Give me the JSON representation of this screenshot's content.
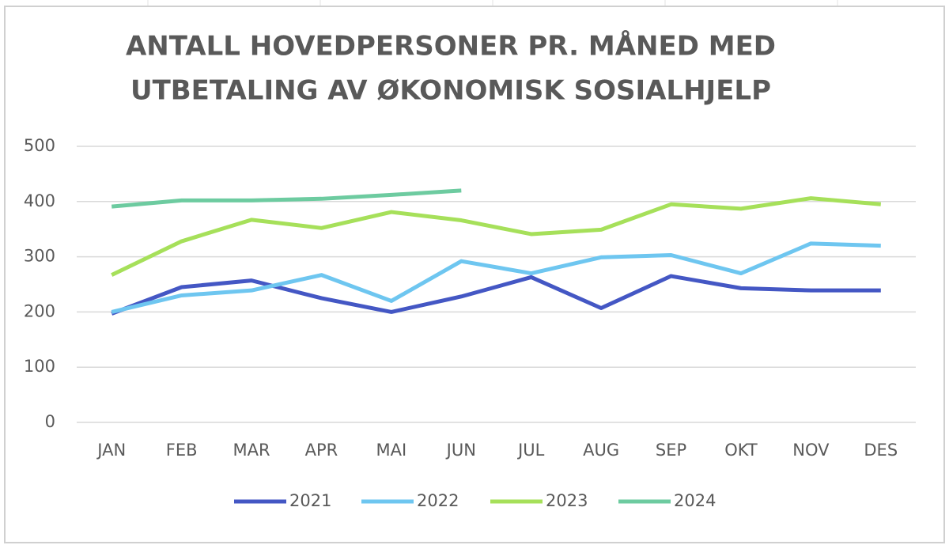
{
  "chart_data": {
    "type": "line",
    "title": [
      "ANTALL HOVEDPERSONER PR. MÅNED MED",
      "UTBETALING AV ØKONOMISK SOSIALHJELP"
    ],
    "categories": [
      "JAN",
      "FEB",
      "MAR",
      "APR",
      "MAI",
      "JUN",
      "JUL",
      "AUG",
      "SEP",
      "OKT",
      "NOV",
      "DES"
    ],
    "series": [
      {
        "name": "2021",
        "color": "#4457c4",
        "values": [
          197,
          245,
          257,
          225,
          200,
          228,
          263,
          207,
          265,
          243,
          239,
          239
        ]
      },
      {
        "name": "2022",
        "color": "#6ec6f0",
        "values": [
          200,
          230,
          239,
          267,
          220,
          292,
          270,
          299,
          303,
          270,
          324,
          320
        ]
      },
      {
        "name": "2023",
        "color": "#a6e05a",
        "values": [
          267,
          328,
          367,
          352,
          381,
          366,
          341,
          349,
          395,
          387,
          406,
          395
        ]
      },
      {
        "name": "2024",
        "color": "#6dcba0",
        "values": [
          391,
          402,
          402,
          405,
          412,
          420,
          null,
          null,
          null,
          null,
          null,
          null
        ]
      }
    ],
    "ylim": [
      0,
      500
    ],
    "yticks": [
      0,
      100,
      200,
      300,
      400,
      500
    ],
    "grid": true,
    "legend": "bottom"
  }
}
